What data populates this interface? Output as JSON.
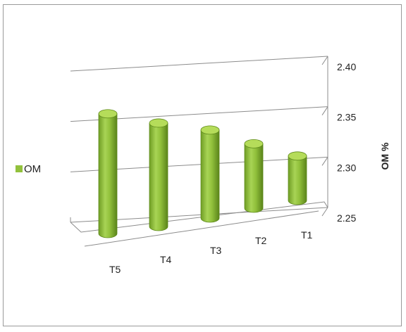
{
  "chart_data": {
    "type": "bar",
    "categories": [
      "T5",
      "T4",
      "T3",
      "T2",
      "T1"
    ],
    "series": [
      {
        "name": "OM",
        "values": [
          2.382,
          2.364,
          2.347,
          2.321,
          2.299
        ]
      }
    ],
    "ylabel": "OM %",
    "xlabel": "",
    "ylim": [
      2.25,
      2.4
    ],
    "yticks": [
      "2.25",
      "2.30",
      "2.35",
      "2.40"
    ],
    "ytick_values": [
      2.25,
      2.3,
      2.35,
      2.4
    ],
    "grid": true,
    "legend_position": "left",
    "bar_style": "3d-cylinder",
    "colors": {
      "bar": "#92c13c",
      "bar_dark": "#5f8a1c",
      "bar_top": "#b5dc5a",
      "grid": "#8c8c8c"
    }
  }
}
